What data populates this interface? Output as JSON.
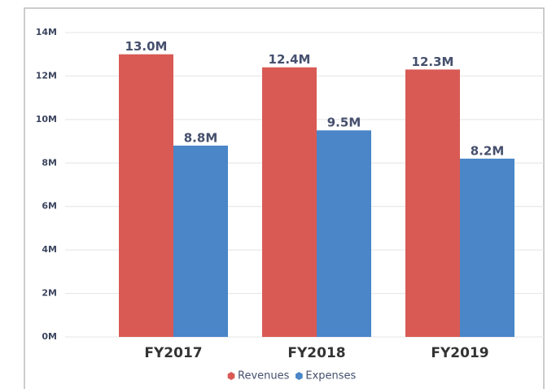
{
  "chart_data": {
    "type": "bar",
    "categories": [
      "FY2017",
      "FY2018",
      "FY2019"
    ],
    "series": [
      {
        "name": "Revenues",
        "color": "#d95a55",
        "values": [
          13.0,
          12.4,
          12.3
        ],
        "value_labels": [
          "13.0M",
          "12.4M",
          "12.3M"
        ]
      },
      {
        "name": "Expenses",
        "color": "#4a86c8",
        "values": [
          8.8,
          9.5,
          8.2
        ],
        "value_labels": [
          "8.8M",
          "9.5M",
          "8.2M"
        ]
      }
    ],
    "ylim": [
      0,
      14
    ],
    "yticks": [
      {
        "value": 0,
        "label": "0M"
      },
      {
        "value": 2,
        "label": "2M"
      },
      {
        "value": 4,
        "label": "4M"
      },
      {
        "value": 6,
        "label": "6M"
      },
      {
        "value": 8,
        "label": "8M"
      },
      {
        "value": 10,
        "label": "10M"
      },
      {
        "value": 12,
        "label": "12M"
      },
      {
        "value": 14,
        "label": "14M"
      }
    ],
    "grid": true,
    "legend": "bottom"
  }
}
